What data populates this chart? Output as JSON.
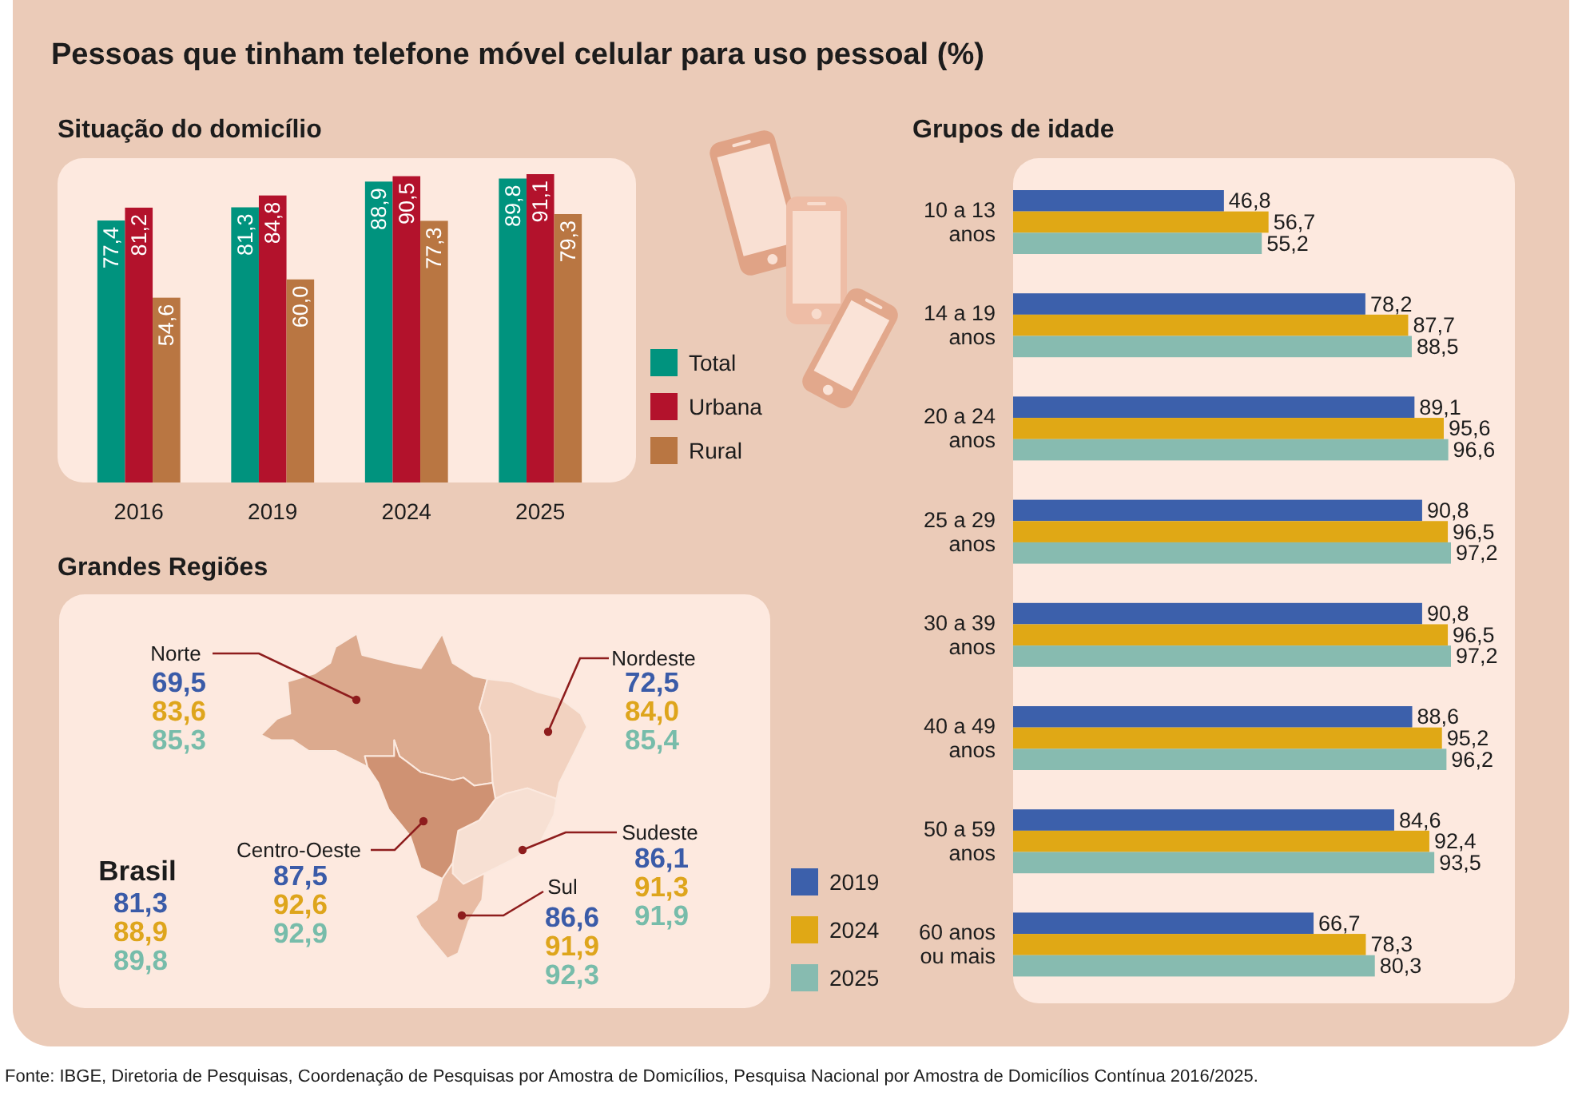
{
  "chart_data": [
    {
      "type": "bar",
      "title": "Pessoas que tinham telefone móvel celular para uso pessoal (%)",
      "subtitle": "Situação do domicílio",
      "categories": [
        "2016",
        "2019",
        "2024",
        "2025"
      ],
      "series": [
        {
          "name": "Total",
          "color": "#00937e",
          "values": [
            77.4,
            81.3,
            88.9,
            89.8
          ],
          "value_labels": [
            "77,4",
            "81,3",
            "88,9",
            "89,8"
          ]
        },
        {
          "name": "Urbana",
          "color": "#b3122c",
          "values": [
            81.2,
            84.8,
            90.5,
            91.1
          ],
          "value_labels": [
            "81,2",
            "84,8",
            "90,5",
            "91,1"
          ]
        },
        {
          "name": "Rural",
          "color": "#b97642",
          "values": [
            54.6,
            60.0,
            77.3,
            79.3
          ],
          "value_labels": [
            "54,6",
            "60,0",
            "77,3",
            "79,3"
          ]
        }
      ],
      "legend": "right",
      "tick_labels": "x",
      "annotations": [
        "Fonte: IBGE, Diretoria de Pesquisas, Coordenação de Pesquisas por Amostra de Domicílios, Pesquisa Nacional por Amostra de Domicílios Contínua 2016/2025."
      ]
    },
    {
      "type": "other",
      "title": "Grandes Regiões",
      "categories": [
        "Norte",
        "Nordeste",
        "Sudeste",
        "Sul",
        "Centro-Oeste",
        "Brasil"
      ],
      "series": [
        {
          "color": "#3a5ba8",
          "values": [
            69.5,
            72.5,
            86.1,
            86.6,
            87.5,
            81.3
          ],
          "value_labels": [
            "69,5",
            "72,5",
            "86,1",
            "86,6",
            "87,5",
            "81,3"
          ]
        },
        {
          "color": "#dea51c",
          "values": [
            83.6,
            84.0,
            91.3,
            91.9,
            92.6,
            88.9
          ],
          "value_labels": [
            "83,6",
            "84,0",
            "91,3",
            "91,9",
            "92,6",
            "88,9"
          ]
        },
        {
          "color": "#77bcaa",
          "values": [
            85.3,
            85.4,
            91.9,
            92.3,
            92.9,
            89.8
          ],
          "value_labels": [
            "85,3",
            "85,4",
            "91,9",
            "92,3",
            "92,9",
            "89,8"
          ]
        }
      ]
    },
    {
      "type": "bar",
      "orientation": "horizontal",
      "title": "Grupos de idade",
      "categories": [
        "10 a 13 anos",
        "14 a 19 anos",
        "20 a 24 anos",
        "25 a 29 anos",
        "30 a 39 anos",
        "40 a 49 anos",
        "50 a 59 anos",
        "60 anos ou mais"
      ],
      "series": [
        {
          "name": "2019",
          "color": "#3c60ab",
          "values": [
            46.8,
            78.2,
            89.1,
            90.8,
            90.8,
            88.6,
            84.6,
            66.7
          ],
          "value_labels": [
            "46,8",
            "78,2",
            "89,1",
            "90,8",
            "90,8",
            "88,6",
            "84,6",
            "66,7"
          ]
        },
        {
          "name": "2024",
          "color": "#e0a815",
          "values": [
            56.7,
            87.7,
            95.6,
            96.5,
            96.5,
            95.2,
            92.4,
            78.3
          ],
          "value_labels": [
            "56,7",
            "87,7",
            "95,6",
            "96,5",
            "96,5",
            "95,2",
            "92,4",
            "78,3"
          ]
        },
        {
          "name": "2025",
          "color": "#87bbb0",
          "values": [
            55.2,
            88.5,
            96.6,
            97.2,
            97.2,
            96.2,
            93.5,
            80.3
          ],
          "value_labels": [
            "55,2",
            "88,5",
            "96,6",
            "97,2",
            "97,2",
            "96,2",
            "93,5",
            "80,3"
          ]
        }
      ],
      "legend": "left",
      "tick_labels": "y"
    }
  ]
}
